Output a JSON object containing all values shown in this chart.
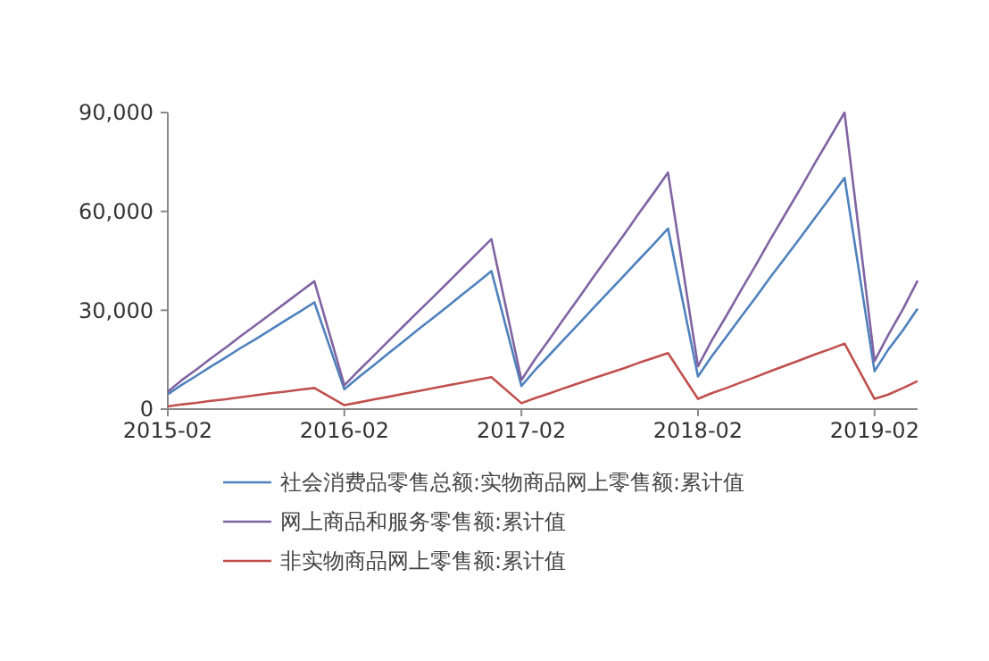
{
  "chart_data": {
    "type": "line",
    "x": [
      "2015-02",
      "2015-03",
      "2015-04",
      "2015-05",
      "2015-06",
      "2015-07",
      "2015-08",
      "2015-09",
      "2015-10",
      "2015-11",
      "2015-12",
      "2016-02",
      "2016-03",
      "2016-04",
      "2016-05",
      "2016-06",
      "2016-07",
      "2016-08",
      "2016-09",
      "2016-10",
      "2016-11",
      "2016-12",
      "2017-02",
      "2017-03",
      "2017-04",
      "2017-05",
      "2017-06",
      "2017-07",
      "2017-08",
      "2017-09",
      "2017-10",
      "2017-11",
      "2017-12",
      "2018-02",
      "2018-03",
      "2018-04",
      "2018-05",
      "2018-06",
      "2018-07",
      "2018-08",
      "2018-09",
      "2018-10",
      "2018-11",
      "2018-12",
      "2019-02",
      "2019-03",
      "2019-04",
      "2019-05"
    ],
    "series": [
      {
        "name": "社会消费品零售总额:实物商品网上零售额:累计值",
        "color": "#4f81bd",
        "values": [
          4500,
          7300,
          10100,
          12900,
          15700,
          18500,
          21200,
          24000,
          26800,
          29600,
          32400,
          6000,
          9600,
          13200,
          16800,
          20400,
          24000,
          27500,
          31100,
          34700,
          38300,
          41900,
          7000,
          11800,
          16600,
          21300,
          26100,
          30900,
          35700,
          40500,
          45200,
          50000,
          54800,
          9900,
          15900,
          22000,
          28000,
          34000,
          40100,
          46100,
          52100,
          58100,
          64200,
          70200,
          11500,
          18000,
          24000,
          30500
        ]
      },
      {
        "name": "网上商品和服务零售额:累计值",
        "color": "#8064a2",
        "values": [
          5300,
          8700,
          12000,
          15400,
          18700,
          22100,
          25400,
          28800,
          32100,
          35500,
          38800,
          7200,
          11600,
          16100,
          20500,
          25000,
          29400,
          33800,
          38300,
          42700,
          47200,
          51600,
          8800,
          15100,
          21400,
          27700,
          34000,
          40300,
          46600,
          52900,
          59200,
          65500,
          71800,
          13000,
          20700,
          28400,
          36100,
          43800,
          51600,
          59300,
          67000,
          74700,
          82400,
          90000,
          14600,
          22400,
          30400,
          39000
        ]
      },
      {
        "name": "非实物商品网上零售额:累计值",
        "color": "#c0504d",
        "values": [
          800,
          1400,
          1900,
          2500,
          3000,
          3600,
          4200,
          4800,
          5300,
          5900,
          6400,
          1200,
          2000,
          2900,
          3700,
          4600,
          5400,
          6300,
          7200,
          8000,
          8900,
          9700,
          1800,
          3300,
          4800,
          6400,
          7900,
          9400,
          10900,
          12400,
          14000,
          15500,
          17000,
          3100,
          4800,
          6400,
          8100,
          9800,
          11500,
          13200,
          14900,
          16600,
          18200,
          19900,
          3100,
          4400,
          6400,
          8500
        ]
      }
    ],
    "xlim": [
      "2015-02",
      "2019-05"
    ],
    "xticks": [
      "2015-02",
      "2016-02",
      "2017-02",
      "2018-02",
      "2019-02"
    ],
    "ylim": [
      0,
      90000
    ],
    "yticks": [
      0,
      {
        "value": 30000,
        "label": "30,000"
      },
      {
        "value": 60000,
        "label": "60,000"
      },
      {
        "value": 90000,
        "label": "90,000"
      }
    ],
    "grid": false,
    "legend": "bottom",
    "marker": "none",
    "line_style": "solid"
  }
}
